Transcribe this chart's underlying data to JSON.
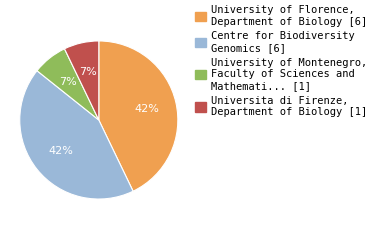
{
  "labels": [
    "University of Florence,\nDepartment of Biology [6]",
    "Centre for Biodiversity\nGenomics [6]",
    "University of Montenegro,\nFaculty of Sciences and\nMathemati... [1]",
    "Universita di Firenze,\nDepartment of Biology [1]"
  ],
  "values": [
    6,
    6,
    1,
    1
  ],
  "colors": [
    "#f0a050",
    "#9ab8d8",
    "#8fbc5a",
    "#c0504d"
  ],
  "pct_labels": [
    "42%",
    "42%",
    "7%",
    "7%"
  ],
  "background_color": "#ffffff",
  "text_color": "#ffffff",
  "fontsize_pct": 8,
  "fontsize_legend": 7.5
}
